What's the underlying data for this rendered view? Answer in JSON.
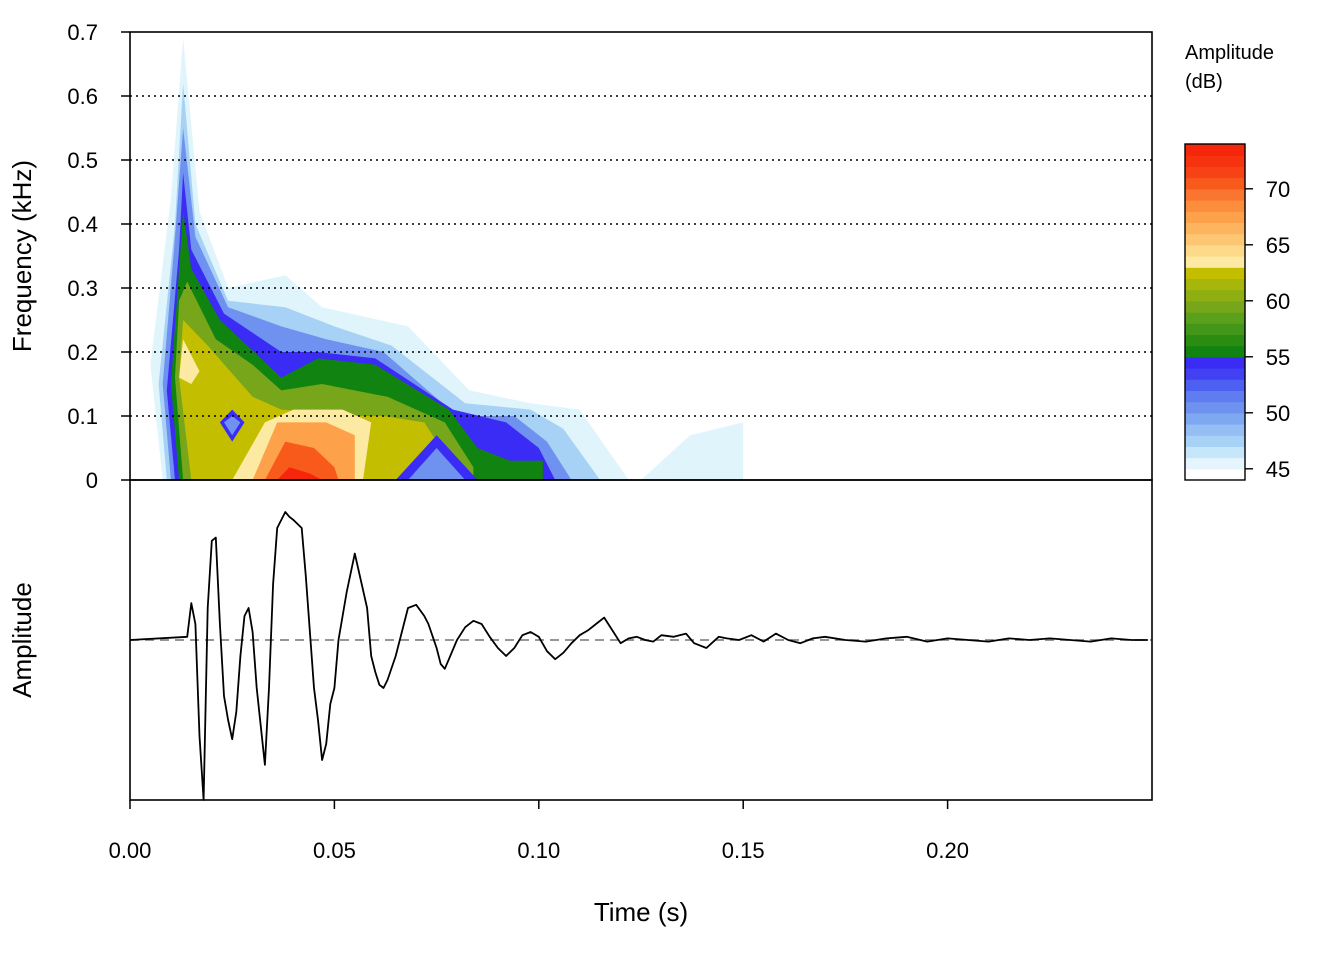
{
  "chart_data": [
    {
      "type": "heatmap",
      "subtype": "spectrogram",
      "xlabel": "Time (s)",
      "ylabel": "Frequency (kHz)",
      "xlim": [
        0,
        0.25
      ],
      "ylim": [
        0,
        0.7
      ],
      "y_ticks": [
        "0",
        "0.1",
        "0.2",
        "0.3",
        "0.4",
        "0.5",
        "0.6",
        "0.7"
      ],
      "grid": "horizontal dotted at 0.1 kHz intervals",
      "contours": [
        {
          "level": 45,
          "color": "#E0F4FC",
          "polygon": [
            [
              0.005,
              0.18
            ],
            [
              0.01,
              0.44
            ],
            [
              0.013,
              0.69
            ],
            [
              0.017,
              0.42
            ],
            [
              0.024,
              0.3
            ],
            [
              0.038,
              0.32
            ],
            [
              0.047,
              0.27
            ],
            [
              0.068,
              0.24
            ],
            [
              0.083,
              0.14
            ],
            [
              0.098,
              0.12
            ],
            [
              0.11,
              0.11
            ],
            [
              0.122,
              0.0
            ],
            [
              0.125,
              0.0
            ],
            [
              0.137,
              0.07
            ],
            [
              0.15,
              0.09
            ],
            [
              0.15,
              0.0
            ],
            [
              0.118,
              0.0
            ],
            [
              0.008,
              0.0
            ]
          ]
        },
        {
          "level": 47,
          "color": "#A8D2F5",
          "polygon": [
            [
              0.007,
              0.15
            ],
            [
              0.011,
              0.4
            ],
            [
              0.013,
              0.62
            ],
            [
              0.016,
              0.4
            ],
            [
              0.024,
              0.28
            ],
            [
              0.038,
              0.27
            ],
            [
              0.05,
              0.24
            ],
            [
              0.064,
              0.21
            ],
            [
              0.082,
              0.12
            ],
            [
              0.098,
              0.11
            ],
            [
              0.106,
              0.08
            ],
            [
              0.115,
              0.0
            ],
            [
              0.009,
              0.0
            ]
          ]
        },
        {
          "level": 49,
          "color": "#6F92F0",
          "polygon": [
            [
              0.008,
              0.15
            ],
            [
              0.011,
              0.38
            ],
            [
              0.013,
              0.55
            ],
            [
              0.016,
              0.38
            ],
            [
              0.024,
              0.27
            ],
            [
              0.037,
              0.24
            ],
            [
              0.048,
              0.22
            ],
            [
              0.062,
              0.2
            ],
            [
              0.08,
              0.1
            ],
            [
              0.094,
              0.1
            ],
            [
              0.102,
              0.06
            ],
            [
              0.108,
              0.0
            ],
            [
              0.01,
              0.0
            ]
          ]
        },
        {
          "level": 51,
          "color": "#3A2BF5",
          "polygon": [
            [
              0.009,
              0.14
            ],
            [
              0.012,
              0.36
            ],
            [
              0.013,
              0.48
            ],
            [
              0.015,
              0.36
            ],
            [
              0.023,
              0.26
            ],
            [
              0.037,
              0.2
            ],
            [
              0.046,
              0.2
            ],
            [
              0.06,
              0.19
            ],
            [
              0.079,
              0.11
            ],
            [
              0.092,
              0.09
            ],
            [
              0.1,
              0.05
            ],
            [
              0.104,
              0.0
            ],
            [
              0.011,
              0.0
            ]
          ]
        },
        {
          "level": 55,
          "color": "#118310",
          "polygon": [
            [
              0.01,
              0.15
            ],
            [
              0.012,
              0.33
            ],
            [
              0.013,
              0.42
            ],
            [
              0.015,
              0.33
            ],
            [
              0.022,
              0.25
            ],
            [
              0.037,
              0.16
            ],
            [
              0.046,
              0.19
            ],
            [
              0.06,
              0.18
            ],
            [
              0.078,
              0.11
            ],
            [
              0.085,
              0.05
            ],
            [
              0.093,
              0.03
            ],
            [
              0.101,
              0.03
            ],
            [
              0.101,
              0.0
            ],
            [
              0.012,
              0.0
            ]
          ]
        },
        {
          "level": 58,
          "color": "#77A61A",
          "polygon": [
            [
              0.011,
              0.16
            ],
            [
              0.012,
              0.28
            ],
            [
              0.014,
              0.31
            ],
            [
              0.021,
              0.22
            ],
            [
              0.03,
              0.18
            ],
            [
              0.037,
              0.14
            ],
            [
              0.047,
              0.15
            ],
            [
              0.063,
              0.13
            ],
            [
              0.077,
              0.09
            ],
            [
              0.084,
              0.02
            ],
            [
              0.084,
              0.0
            ],
            [
              0.013,
              0.0
            ]
          ]
        },
        {
          "level": 61,
          "color": "#C3BF00",
          "polygon": [
            [
              0.012,
              0.16
            ],
            [
              0.013,
              0.25
            ],
            [
              0.019,
              0.21
            ],
            [
              0.03,
              0.13
            ],
            [
              0.037,
              0.11
            ],
            [
              0.055,
              0.1
            ],
            [
              0.062,
              0.1
            ],
            [
              0.072,
              0.09
            ],
            [
              0.081,
              0.0
            ],
            [
              0.015,
              0.0
            ]
          ]
        },
        {
          "level": 64,
          "color": "#FDEAA2",
          "polygon": [
            [
              0.012,
              0.16
            ],
            [
              0.013,
              0.22
            ],
            [
              0.017,
              0.17
            ],
            [
              0.015,
              0.15
            ]
          ]
        },
        {
          "level": 64,
          "color": "#FDEAA2",
          "polygon": [
            [
              0.025,
              0.0
            ],
            [
              0.033,
              0.09
            ],
            [
              0.04,
              0.11
            ],
            [
              0.052,
              0.11
            ],
            [
              0.059,
              0.09
            ],
            [
              0.057,
              0.0
            ]
          ]
        },
        {
          "level": 67,
          "color": "#FDA24A",
          "polygon": [
            [
              0.03,
              0.0
            ],
            [
              0.036,
              0.09
            ],
            [
              0.048,
              0.09
            ],
            [
              0.055,
              0.07
            ],
            [
              0.055,
              0.0
            ]
          ]
        },
        {
          "level": 70,
          "color": "#F85A1C",
          "polygon": [
            [
              0.033,
              0.0
            ],
            [
              0.038,
              0.06
            ],
            [
              0.045,
              0.05
            ],
            [
              0.05,
              0.02
            ],
            [
              0.051,
              0.0
            ]
          ]
        },
        {
          "level": 73,
          "color": "#F5260B",
          "polygon": [
            [
              0.036,
              0.0
            ],
            [
              0.039,
              0.02
            ],
            [
              0.044,
              0.01
            ],
            [
              0.047,
              0.0
            ]
          ]
        },
        {
          "level": 51,
          "color": "#3A2BF5",
          "polygon": [
            [
              0.022,
              0.09
            ],
            [
              0.025,
              0.11
            ],
            [
              0.028,
              0.09
            ],
            [
              0.025,
              0.06
            ]
          ]
        },
        {
          "level": 49,
          "color": "#6F92F0",
          "polygon": [
            [
              0.023,
              0.09
            ],
            [
              0.025,
              0.1
            ],
            [
              0.027,
              0.09
            ],
            [
              0.025,
              0.07
            ]
          ]
        },
        {
          "level": 51,
          "color": "#3A2BF5",
          "polygon": [
            [
              0.065,
              0.0
            ],
            [
              0.075,
              0.07
            ],
            [
              0.085,
              0.0
            ]
          ]
        },
        {
          "level": 49,
          "color": "#6F92F0",
          "polygon": [
            [
              0.068,
              0.0
            ],
            [
              0.075,
              0.05
            ],
            [
              0.082,
              0.0
            ]
          ]
        }
      ]
    },
    {
      "type": "line",
      "subtype": "oscillogram",
      "xlabel": "Time (s)",
      "ylabel": "Amplitude",
      "xlim": [
        0,
        0.25
      ],
      "x_ticks": [
        "0.00",
        "0.05",
        "0.10",
        "0.15",
        "0.20"
      ],
      "ylim": [
        -1,
        1
      ],
      "baseline": 0,
      "series": [
        {
          "x": [
            0.0,
            0.014,
            0.015,
            0.016,
            0.017,
            0.018,
            0.019,
            0.02,
            0.021,
            0.022,
            0.023,
            0.024,
            0.025,
            0.026,
            0.027,
            0.028,
            0.029,
            0.03,
            0.031,
            0.033,
            0.034,
            0.035,
            0.036,
            0.038,
            0.039,
            0.04,
            0.042,
            0.043,
            0.044,
            0.045,
            0.046,
            0.047,
            0.048,
            0.049,
            0.05,
            0.051,
            0.053,
            0.055,
            0.058,
            0.059,
            0.06,
            0.061,
            0.062,
            0.063,
            0.065,
            0.068,
            0.07,
            0.072,
            0.073,
            0.075,
            0.076,
            0.077,
            0.078,
            0.08,
            0.082,
            0.084,
            0.086,
            0.088,
            0.09,
            0.092,
            0.094,
            0.096,
            0.098,
            0.1,
            0.102,
            0.104,
            0.106,
            0.108,
            0.11,
            0.112,
            0.114,
            0.116,
            0.118,
            0.12,
            0.122,
            0.124,
            0.126,
            0.128,
            0.13,
            0.133,
            0.136,
            0.138,
            0.141,
            0.144,
            0.146,
            0.149,
            0.152,
            0.155,
            0.158,
            0.161,
            0.164,
            0.167,
            0.17,
            0.175,
            0.18,
            0.185,
            0.19,
            0.195,
            0.2,
            0.205,
            0.21,
            0.215,
            0.22,
            0.225,
            0.23,
            0.235,
            0.24,
            0.245,
            0.249
          ],
          "y": [
            0.0,
            0.02,
            0.23,
            0.1,
            -0.6,
            -1.0,
            0.2,
            0.62,
            0.64,
            0.1,
            -0.35,
            -0.5,
            -0.62,
            -0.45,
            -0.1,
            0.15,
            0.2,
            0.05,
            -0.3,
            -0.78,
            -0.3,
            0.35,
            0.7,
            0.8,
            0.77,
            0.75,
            0.7,
            0.4,
            0.05,
            -0.3,
            -0.5,
            -0.75,
            -0.65,
            -0.4,
            -0.3,
            0.0,
            0.3,
            0.54,
            0.2,
            -0.1,
            -0.2,
            -0.28,
            -0.3,
            -0.25,
            -0.1,
            0.2,
            0.22,
            0.15,
            0.1,
            -0.05,
            -0.15,
            -0.18,
            -0.12,
            0.0,
            0.08,
            0.12,
            0.1,
            0.02,
            -0.05,
            -0.1,
            -0.05,
            0.03,
            0.05,
            0.02,
            -0.07,
            -0.12,
            -0.08,
            -0.02,
            0.03,
            0.06,
            0.1,
            0.14,
            0.06,
            -0.02,
            0.01,
            0.02,
            0.0,
            -0.01,
            0.03,
            0.02,
            0.04,
            -0.02,
            -0.05,
            0.02,
            0.01,
            0.0,
            0.03,
            -0.01,
            0.04,
            0.0,
            -0.02,
            0.01,
            0.02,
            0.0,
            -0.01,
            0.01,
            0.02,
            -0.01,
            0.01,
            0.0,
            -0.01,
            0.01,
            0.0,
            0.01,
            0.0,
            -0.01,
            0.01,
            0.0,
            0.0
          ]
        }
      ]
    },
    {
      "type": "colorbar",
      "title": "Amplitude (dB)",
      "title_lines": [
        "Amplitude",
        "(dB)"
      ],
      "range": [
        44,
        74
      ],
      "ticks": [
        "45",
        "50",
        "55",
        "60",
        "65",
        "70"
      ],
      "colors": [
        "#FFFFFF",
        "#E6F5FD",
        "#C6E7FA",
        "#A8D2F5",
        "#94BEF4",
        "#7EA8F2",
        "#6F92F0",
        "#5F7CF0",
        "#4E60F2",
        "#4240F3",
        "#3A2BF5",
        "#118310",
        "#2B8C12",
        "#42961A",
        "#5BA01A",
        "#77A61A",
        "#8EAE12",
        "#A6B60A",
        "#C3BF00",
        "#FDEAA2",
        "#FDD98A",
        "#FDC673",
        "#FDB45E",
        "#FDA24A",
        "#FB8D3C",
        "#FA7530",
        "#F85A1C",
        "#F74215",
        "#F6320F",
        "#F5260B"
      ]
    }
  ]
}
